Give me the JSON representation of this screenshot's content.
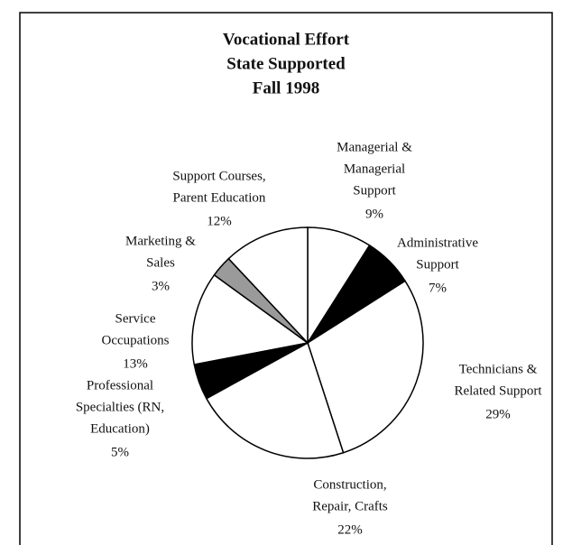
{
  "chart_data": {
    "type": "pie",
    "title": [
      "Vocational Effort",
      "State Supported",
      "Fall 1998"
    ],
    "categories": [
      [
        "Managerial &",
        "Managerial",
        "Support"
      ],
      [
        "Administrative",
        "Support"
      ],
      [
        "Technicians &",
        "Related Support"
      ],
      [
        "Construction,",
        "Repair, Crafts"
      ],
      [
        "Professional",
        "Specialties (RN,",
        "Education)"
      ],
      [
        "Service",
        "Occupations"
      ],
      [
        "Marketing &",
        "Sales"
      ],
      [
        "Support Courses,",
        "Parent Education"
      ]
    ],
    "values": [
      9,
      7,
      29,
      22,
      5,
      13,
      3,
      12
    ],
    "value_labels": [
      "9%",
      "7%",
      "29%",
      "22%",
      "5%",
      "13%",
      "3%",
      "12%"
    ],
    "colors": [
      "#ffffff",
      "#000000",
      "#ffffff",
      "#ffffff",
      "#000000",
      "#ffffff",
      "#9a9a9a",
      "#ffffff"
    ]
  }
}
